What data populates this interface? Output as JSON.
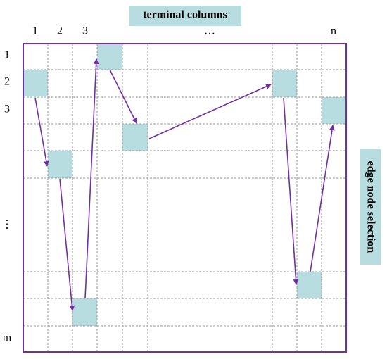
{
  "title": "terminal columns",
  "column_labels": [
    "1",
    "2",
    "3",
    "…",
    "n"
  ],
  "row_labels": [
    "1",
    "2",
    "3",
    "⋮",
    "m"
  ],
  "side_label": "edge node selection"
}
